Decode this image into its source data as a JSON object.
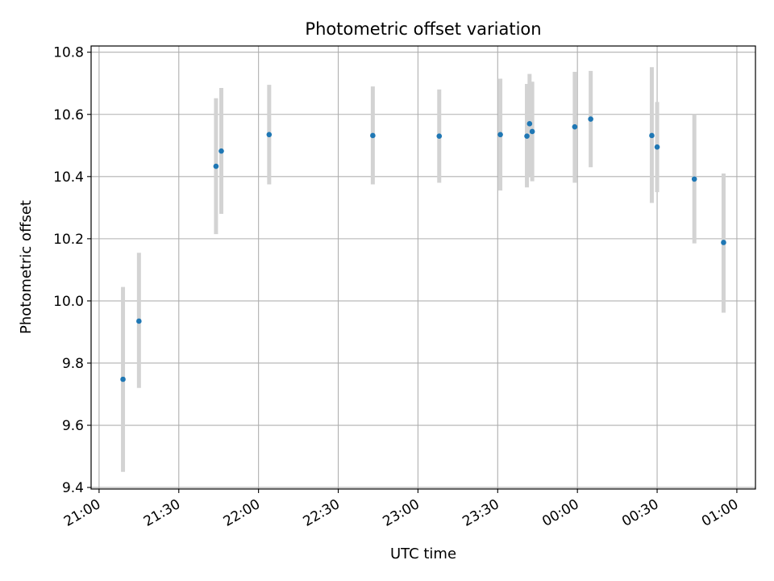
{
  "chart_data": {
    "type": "scatter",
    "title": "Photometric offset variation",
    "xlabel": "UTC time",
    "ylabel": "Photometric offset",
    "grid": true,
    "x_axis_type": "time",
    "xlim": [
      "20:57",
      "01:07"
    ],
    "ylim": [
      9.395,
      10.82
    ],
    "x_ticks": [
      "21:00",
      "21:30",
      "22:00",
      "22:30",
      "23:00",
      "23:30",
      "00:00",
      "00:30",
      "01:00"
    ],
    "y_ticks": [
      "9.4",
      "9.6",
      "9.8",
      "10.0",
      "10.2",
      "10.4",
      "10.6",
      "10.8"
    ],
    "series": [
      {
        "marker_color": "#1f77b4",
        "errorbar_color": "#d3d3d3",
        "points": [
          {
            "x": "21:09",
            "y": 9.748,
            "y_low": 9.45,
            "y_high": 10.045
          },
          {
            "x": "21:15",
            "y": 9.935,
            "y_low": 9.72,
            "y_high": 10.155
          },
          {
            "x": "21:44",
            "y": 10.433,
            "y_low": 10.215,
            "y_high": 10.652
          },
          {
            "x": "21:46",
            "y": 10.482,
            "y_low": 10.28,
            "y_high": 10.685
          },
          {
            "x": "22:04",
            "y": 10.535,
            "y_low": 10.375,
            "y_high": 10.695
          },
          {
            "x": "22:43",
            "y": 10.532,
            "y_low": 10.375,
            "y_high": 10.69
          },
          {
            "x": "23:08",
            "y": 10.53,
            "y_low": 10.38,
            "y_high": 10.68
          },
          {
            "x": "23:31",
            "y": 10.535,
            "y_low": 10.355,
            "y_high": 10.715
          },
          {
            "x": "23:41",
            "y": 10.53,
            "y_low": 10.365,
            "y_high": 10.698
          },
          {
            "x": "23:42",
            "y": 10.57,
            "y_low": 10.4,
            "y_high": 10.73
          },
          {
            "x": "23:43",
            "y": 10.545,
            "y_low": 10.385,
            "y_high": 10.705
          },
          {
            "x": "23:59",
            "y": 10.56,
            "y_low": 10.38,
            "y_high": 10.737
          },
          {
            "x": "00:05",
            "y": 10.585,
            "y_low": 10.43,
            "y_high": 10.74
          },
          {
            "x": "00:28",
            "y": 10.532,
            "y_low": 10.315,
            "y_high": 10.752
          },
          {
            "x": "00:30",
            "y": 10.495,
            "y_low": 10.35,
            "y_high": 10.64
          },
          {
            "x": "00:44",
            "y": 10.392,
            "y_low": 10.185,
            "y_high": 10.6
          },
          {
            "x": "00:55",
            "y": 10.188,
            "y_low": 9.962,
            "y_high": 10.41
          }
        ]
      }
    ]
  }
}
